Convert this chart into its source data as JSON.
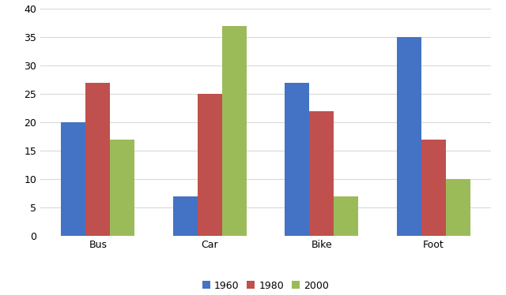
{
  "categories": [
    "Bus",
    "Car",
    "Bike",
    "Foot"
  ],
  "years": [
    "1960",
    "1980",
    "2000"
  ],
  "values": {
    "1960": [
      20,
      7,
      27,
      35
    ],
    "1980": [
      27,
      25,
      22,
      17
    ],
    "2000": [
      17,
      37,
      7,
      10
    ]
  },
  "bar_colors": {
    "1960": "#4472C4",
    "1980": "#C0504D",
    "2000": "#9BBB59"
  },
  "ylim": [
    0,
    40
  ],
  "yticks": [
    0,
    5,
    10,
    15,
    20,
    25,
    30,
    35,
    40
  ],
  "legend_labels": [
    "1960",
    "1980",
    "2000"
  ],
  "background_color": "#ffffff",
  "plot_bg_color": "#ffffff",
  "grid_color": "#d9d9d9",
  "bar_width": 0.22,
  "tick_fontsize": 9,
  "legend_fontsize": 9
}
